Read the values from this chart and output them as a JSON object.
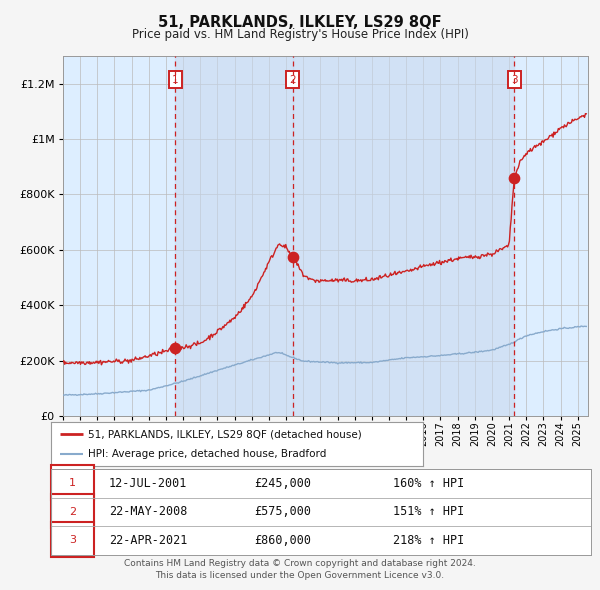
{
  "title": "51, PARKLANDS, ILKLEY, LS29 8QF",
  "subtitle": "Price paid vs. HM Land Registry's House Price Index (HPI)",
  "hpi_label": "HPI: Average price, detached house, Bradford",
  "property_label": "51, PARKLANDS, ILKLEY, LS29 8QF (detached house)",
  "sales": [
    {
      "num": 1,
      "date": "12-JUL-2001",
      "year": 2001.54,
      "price": 245000,
      "hpi_pct": "160%",
      "arrow": "↑"
    },
    {
      "num": 2,
      "date": "22-MAY-2008",
      "year": 2008.39,
      "price": 575000,
      "hpi_pct": "151%",
      "arrow": "↑"
    },
    {
      "num": 3,
      "date": "22-APR-2021",
      "year": 2021.31,
      "price": 860000,
      "hpi_pct": "218%",
      "arrow": "↑"
    }
  ],
  "copyright_line1": "Contains HM Land Registry data © Crown copyright and database right 2024.",
  "copyright_line2": "This data is licensed under the Open Government Licence v3.0.",
  "fig_bg": "#f5f5f5",
  "plot_bg": "#ddeeff",
  "grid_color": "#bbbbbb",
  "red_line_color": "#cc2222",
  "blue_line_color": "#88aacc",
  "sale_dot_color": "#cc2222",
  "dashed_line_color": "#cc2222",
  "shade_color": "#c8d8ee",
  "legend_bg": "#ffffff",
  "ylim": [
    0,
    1300000
  ],
  "yticks": [
    0,
    200000,
    400000,
    600000,
    800000,
    1000000,
    1200000
  ],
  "xlim_start": 1995,
  "xlim_end": 2025.6
}
